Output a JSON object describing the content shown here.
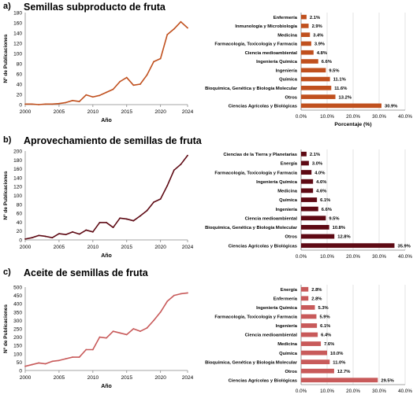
{
  "colors": {
    "a": "#C0501E",
    "b": "#5E0A14",
    "c": "#C85A5A",
    "axis": "#888888",
    "grid": "#d0d0d0"
  },
  "panels": [
    {
      "label": "a)",
      "title": "Semillas subproducto de fruta"
    },
    {
      "label": "b)",
      "title": "Aprovechamiento de semillas de fruta"
    },
    {
      "label": "c)",
      "title": "Aceite de semillas de fruta"
    }
  ],
  "chart_data": [
    {
      "type": "line",
      "panel": "a",
      "xlabel": "Año",
      "ylabel": "Nº de Publicaciones",
      "xlim": [
        2000,
        2024
      ],
      "ylim": [
        0,
        180
      ],
      "ytick_step": 20,
      "xticks": [
        2000,
        2005,
        2010,
        2015,
        2020,
        2024
      ],
      "x": [
        2000,
        2001,
        2002,
        2003,
        2004,
        2005,
        2006,
        2007,
        2008,
        2009,
        2010,
        2011,
        2012,
        2013,
        2014,
        2015,
        2016,
        2017,
        2018,
        2019,
        2020,
        2021,
        2022,
        2023,
        2024
      ],
      "y": [
        1,
        1,
        0,
        1,
        1,
        2,
        4,
        8,
        6,
        19,
        15,
        18,
        24,
        30,
        45,
        53,
        38,
        40,
        58,
        84,
        90,
        137,
        148,
        162,
        150
      ]
    },
    {
      "type": "bar",
      "orientation": "horizontal",
      "panel": "a",
      "xlabel": "Porcentaje (%)",
      "xlim": [
        0,
        40
      ],
      "xtick_step": 10,
      "categories": [
        "Enfermería",
        "Inmunología y Microbiología",
        "Medicina",
        "Farmacología, Toxicología y Farmacia",
        "Ciencia medioambiental",
        "Ingeniería Química",
        "Ingeniería",
        "Química",
        "Bioquímica, Genética y Biología Molecular",
        "Otros",
        "Ciencias Agrícolas y Biológicas"
      ],
      "values": [
        2.1,
        2.9,
        3.4,
        3.9,
        4.8,
        6.6,
        9.5,
        11.1,
        11.6,
        13.2,
        30.9
      ],
      "value_labels": [
        "2.1%",
        "2.9%",
        "3.4%",
        "3.9%",
        "4.8%",
        "6.6%",
        "9.5%",
        "11.1%",
        "11.6%",
        "13.2%",
        "30.9%"
      ],
      "xtick_labels": [
        "0.0%",
        "10.0%",
        "20.0%",
        "30.0%",
        "40.0%"
      ]
    },
    {
      "type": "line",
      "panel": "b",
      "xlabel": "Año",
      "ylabel": "Nº de Publicaciones",
      "xlim": [
        2000,
        2024
      ],
      "ylim": [
        0,
        200
      ],
      "ytick_step": 20,
      "xticks": [
        2000,
        2005,
        2010,
        2015,
        2020,
        2024
      ],
      "x": [
        2000,
        2001,
        2002,
        2003,
        2004,
        2005,
        2006,
        2007,
        2008,
        2009,
        2010,
        2011,
        2012,
        2013,
        2014,
        2015,
        2016,
        2017,
        2018,
        2019,
        2020,
        2021,
        2022,
        2023,
        2024
      ],
      "y": [
        2,
        5,
        10,
        8,
        5,
        14,
        12,
        18,
        13,
        22,
        18,
        39,
        39,
        28,
        49,
        47,
        43,
        54,
        66,
        85,
        92,
        122,
        157,
        170,
        190
      ]
    },
    {
      "type": "bar",
      "orientation": "horizontal",
      "panel": "b",
      "xlim": [
        0,
        40
      ],
      "xtick_step": 10,
      "categories": [
        "Ciencias de la Tierra y Planetarias",
        "Energía",
        "Farmacología, Toxicología y Farmacia",
        "Ingeniería Química",
        "Medicina",
        "Química",
        "Ingeniería",
        "Ciencia medioambiental",
        "Bioquímica, Genética y Biología Molecular",
        "Otros",
        "Ciencias Agrícolas y Biológicas"
      ],
      "values": [
        2.1,
        3.0,
        4.0,
        4.6,
        4.6,
        6.1,
        6.6,
        9.5,
        10.8,
        12.8,
        35.9
      ],
      "value_labels": [
        "2.1%",
        "3.0%",
        "4.0%",
        "4.6%",
        "4.6%",
        "6.1%",
        "6.6%",
        "9.5%",
        "10.8%",
        "12.8%",
        "35.9%"
      ],
      "xtick_labels": [
        "0.0%",
        "10.0%",
        "20.0%",
        "30.0%",
        "40.0%"
      ]
    },
    {
      "type": "line",
      "panel": "c",
      "xlabel": "Año",
      "ylabel": "Nº de Publicaciones",
      "xlim": [
        2000,
        2024
      ],
      "ylim": [
        0,
        500
      ],
      "ytick_step": 50,
      "xticks": [
        2000,
        2005,
        2010,
        2015,
        2020,
        2024
      ],
      "x": [
        2000,
        2001,
        2002,
        2003,
        2004,
        2005,
        2006,
        2007,
        2008,
        2009,
        2010,
        2011,
        2012,
        2013,
        2014,
        2015,
        2016,
        2017,
        2018,
        2019,
        2020,
        2021,
        2022,
        2023,
        2024
      ],
      "y": [
        25,
        35,
        45,
        40,
        55,
        60,
        70,
        80,
        80,
        125,
        125,
        200,
        195,
        235,
        225,
        215,
        250,
        235,
        255,
        300,
        350,
        415,
        450,
        460,
        465
      ]
    },
    {
      "type": "bar",
      "orientation": "horizontal",
      "panel": "c",
      "xlim": [
        0,
        40
      ],
      "xtick_step": 10,
      "categories": [
        "Energía",
        "Enfermería",
        "Ingeniería Química",
        "Farmacología, Toxicología y Farmacia",
        "Ingeniería",
        "Ciencia medioambiental",
        "Medicina",
        "Química",
        "Bioquímica, Genética y Biología Molecular",
        "Otros",
        "Ciencias Agrícolas y Biológicas"
      ],
      "values": [
        2.8,
        2.8,
        5.3,
        5.9,
        6.1,
        6.4,
        7.6,
        10.0,
        11.0,
        12.7,
        29.5
      ],
      "value_labels": [
        "2.8%",
        "2.8%",
        "5.3%",
        "5.9%",
        "6.1%",
        "6.4%",
        "7.6%",
        "10.0%",
        "11.0%",
        "12.7%",
        "29.5%"
      ],
      "xtick_labels": [
        "0.0%",
        "10.0%",
        "20.0%",
        "30.0%",
        "40.0%"
      ]
    }
  ]
}
